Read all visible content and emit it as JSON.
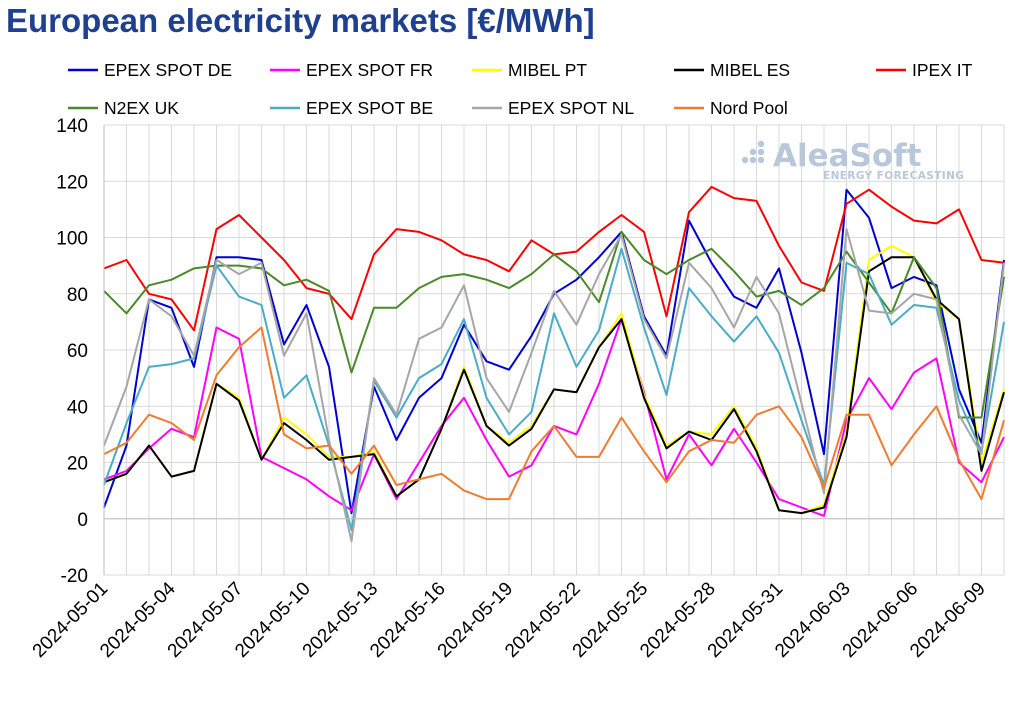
{
  "chart_data": {
    "type": "line",
    "title": "European electricity markets [€/MWh]",
    "ylim": [
      -20,
      140
    ],
    "yticks": [
      -20,
      0,
      20,
      40,
      60,
      80,
      100,
      120,
      140
    ],
    "grid": {
      "vertical": true,
      "horizontal": true
    },
    "legend_position": "top",
    "x": [
      "2024-05-01",
      "2024-05-02",
      "2024-05-03",
      "2024-05-04",
      "2024-05-05",
      "2024-05-06",
      "2024-05-07",
      "2024-05-08",
      "2024-05-09",
      "2024-05-10",
      "2024-05-11",
      "2024-05-12",
      "2024-05-13",
      "2024-05-14",
      "2024-05-15",
      "2024-05-16",
      "2024-05-17",
      "2024-05-18",
      "2024-05-19",
      "2024-05-20",
      "2024-05-21",
      "2024-05-22",
      "2024-05-23",
      "2024-05-24",
      "2024-05-25",
      "2024-05-26",
      "2024-05-27",
      "2024-05-28",
      "2024-05-29",
      "2024-05-30",
      "2024-05-31",
      "2024-06-01",
      "2024-06-02",
      "2024-06-03",
      "2024-06-04",
      "2024-06-05",
      "2024-06-06",
      "2024-06-07",
      "2024-06-08",
      "2024-06-09",
      "2024-06-10"
    ],
    "x_tick_labels": [
      "2024-05-01",
      "2024-05-04",
      "2024-05-07",
      "2024-05-10",
      "2024-05-13",
      "2024-05-16",
      "2024-05-19",
      "2024-05-22",
      "2024-05-25",
      "2024-05-28",
      "2024-05-31",
      "2024-06-03",
      "2024-06-06",
      "2024-06-09"
    ],
    "series": [
      {
        "name": "EPEX SPOT DE",
        "color": "#0000d0",
        "values": [
          4,
          26,
          78,
          75,
          54,
          93,
          93,
          92,
          62,
          76,
          54,
          2,
          47,
          28,
          43,
          50,
          69,
          56,
          53,
          65,
          80,
          85,
          93,
          102,
          72,
          58,
          106,
          91,
          79,
          75,
          89,
          59,
          23,
          117,
          107,
          82,
          86,
          83,
          46,
          27,
          92
        ]
      },
      {
        "name": "EPEX SPOT FR",
        "color": "#ff00ff",
        "values": [
          14,
          17,
          25,
          32,
          29,
          68,
          64,
          22,
          18,
          14,
          8,
          3,
          23,
          7,
          20,
          33,
          43,
          28,
          15,
          19,
          33,
          30,
          48,
          71,
          45,
          14,
          30,
          19,
          32,
          20,
          7,
          4,
          1,
          35,
          50,
          39,
          52,
          57,
          20,
          13,
          29
        ]
      },
      {
        "name": "MIBEL PT",
        "color": "#ffff00",
        "values": [
          13,
          16,
          26,
          15,
          17,
          48,
          43,
          21,
          36,
          30,
          22,
          22,
          24,
          8,
          14,
          32,
          54,
          33,
          27,
          33,
          46,
          45,
          61,
          73,
          44,
          26,
          31,
          30,
          40,
          25,
          3,
          2,
          5,
          31,
          92,
          97,
          93,
          77,
          71,
          20,
          46
        ]
      },
      {
        "name": "MIBEL ES",
        "color": "#000000",
        "values": [
          13,
          16,
          26,
          15,
          17,
          48,
          42,
          21,
          34,
          28,
          21,
          22,
          23,
          8,
          14,
          32,
          53,
          33,
          26,
          32,
          46,
          45,
          61,
          71,
          43,
          25,
          31,
          28,
          39,
          24,
          3,
          2,
          4,
          29,
          88,
          93,
          93,
          78,
          71,
          17,
          45
        ]
      },
      {
        "name": "IPEX IT",
        "color": "#ff0000",
        "values": [
          89,
          92,
          80,
          78,
          67,
          103,
          108,
          100,
          92,
          82,
          80,
          71,
          94,
          103,
          102,
          99,
          94,
          92,
          88,
          99,
          94,
          95,
          102,
          108,
          102,
          72,
          109,
          118,
          114,
          113,
          97,
          84,
          81,
          112,
          117,
          111,
          106,
          105,
          110,
          92,
          91
        ]
      },
      {
        "name": "N2EX UK",
        "color": "#4a8a2a",
        "values": [
          81,
          73,
          83,
          85,
          89,
          90,
          90,
          89,
          83,
          85,
          81,
          52,
          75,
          75,
          82,
          86,
          87,
          85,
          82,
          87,
          94,
          88,
          77,
          102,
          92,
          87,
          92,
          96,
          88,
          79,
          81,
          76,
          82,
          95,
          84,
          73,
          93,
          82,
          36,
          36,
          86
        ]
      },
      {
        "name": "EPEX SPOT BE",
        "color": "#4aacc6",
        "values": [
          12,
          34,
          54,
          55,
          57,
          90,
          79,
          76,
          43,
          51,
          26,
          -4,
          49,
          36,
          50,
          55,
          71,
          43,
          30,
          38,
          73,
          54,
          67,
          96,
          68,
          44,
          82,
          72,
          63,
          72,
          59,
          35,
          12,
          91,
          87,
          69,
          76,
          75,
          42,
          24,
          70
        ]
      },
      {
        "name": "EPEX SPOT NL",
        "color": "#a6a6a6",
        "values": [
          26,
          47,
          78,
          72,
          58,
          92,
          87,
          91,
          58,
          73,
          28,
          -8,
          50,
          37,
          64,
          68,
          83,
          50,
          38,
          59,
          81,
          69,
          87,
          101,
          71,
          57,
          91,
          82,
          68,
          86,
          73,
          41,
          9,
          103,
          74,
          73,
          80,
          78,
          37,
          23,
          91
        ]
      },
      {
        "name": "Nord Pool",
        "color": "#ed7d31",
        "values": [
          23,
          27,
          37,
          34,
          28,
          51,
          61,
          68,
          30,
          25,
          26,
          16,
          26,
          12,
          14,
          16,
          10,
          7,
          7,
          24,
          33,
          22,
          22,
          36,
          24,
          13,
          24,
          28,
          27,
          37,
          40,
          29,
          11,
          37,
          37,
          19,
          30,
          40,
          21,
          7,
          35
        ]
      }
    ]
  },
  "logo": {
    "name": "AleaSoft",
    "tagline": "ENERGY FORECASTING"
  }
}
